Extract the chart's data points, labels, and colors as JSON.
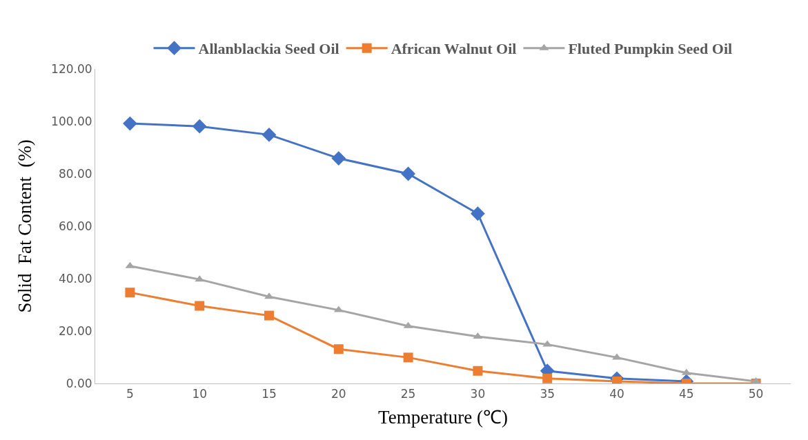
{
  "chart_data": {
    "type": "line",
    "xlabel": "Temperature (℃)",
    "ylabel": "Solid  Fat Content  (%)",
    "categories": [
      "5",
      "10",
      "15",
      "20",
      "25",
      "30",
      "35",
      "40",
      "45",
      "50"
    ],
    "series": [
      {
        "name": "Allanblackia Seed Oil",
        "color": "#4472c4",
        "marker": "diamond",
        "values": [
          99.2,
          98.1,
          94.9,
          85.9,
          80.0,
          64.8,
          4.8,
          1.9,
          0.8,
          null
        ]
      },
      {
        "name": "African Walnut Oil",
        "color": "#ed7d31",
        "marker": "square",
        "values": [
          34.7,
          29.6,
          25.9,
          13.1,
          9.9,
          4.8,
          1.9,
          0.8,
          0,
          0
        ]
      },
      {
        "name": "Fluted Pumpkin Seed Oil",
        "color": "#a5a5a5",
        "marker": "triangle",
        "values": [
          44.8,
          39.7,
          33.1,
          28.0,
          21.9,
          17.9,
          14.9,
          9.9,
          4.0,
          0.8
        ]
      }
    ],
    "ylim": [
      0,
      120
    ],
    "yticks": [
      {
        "value": 0,
        "label": "0.00"
      },
      {
        "value": 20,
        "label": "20.00"
      },
      {
        "value": 40,
        "label": "40.00"
      },
      {
        "value": 60,
        "label": "60.00"
      },
      {
        "value": 80,
        "label": "80.00"
      },
      {
        "value": 100,
        "label": "100.00"
      },
      {
        "value": 120,
        "label": "120.00"
      }
    ],
    "grid": false,
    "legend": "top",
    "line_style": "solid"
  }
}
